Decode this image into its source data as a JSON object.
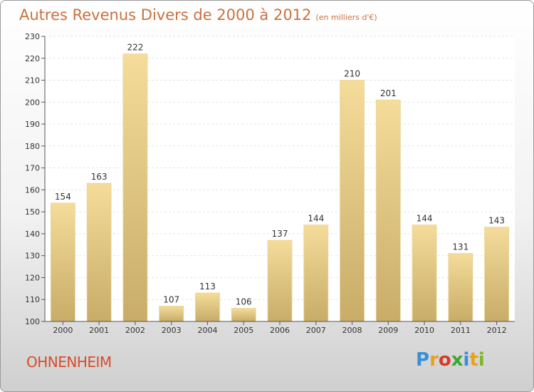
{
  "title": "Autres Revenus Divers de 2000 à 2012",
  "subtitle": "(en milliers d'€)",
  "commune": "OHNENHEIM",
  "logo": {
    "text": "Proxiti",
    "colors": [
      "#3a8fd8",
      "#e8a21c",
      "#d63a2a",
      "#3fa535",
      "#3a8fd8",
      "#e8a21c",
      "#7ab828"
    ]
  },
  "colors": {
    "bar_light": "#f5dc9a",
    "bar_dark": "#c8ac68",
    "title": "#c9713f",
    "commune": "#d94b2b"
  },
  "chart_data": {
    "type": "bar",
    "categories": [
      "2000",
      "2001",
      "2002",
      "2003",
      "2004",
      "2005",
      "2006",
      "2007",
      "2008",
      "2009",
      "2010",
      "2011",
      "2012"
    ],
    "values": [
      154,
      163,
      222,
      107,
      113,
      106,
      137,
      144,
      210,
      201,
      144,
      131,
      143
    ],
    "title": "Autres Revenus Divers de 2000 à 2012",
    "ylim": [
      100,
      230
    ],
    "yticks": [
      100,
      110,
      120,
      130,
      140,
      150,
      160,
      170,
      180,
      190,
      200,
      210,
      220,
      230
    ],
    "grid": true
  }
}
